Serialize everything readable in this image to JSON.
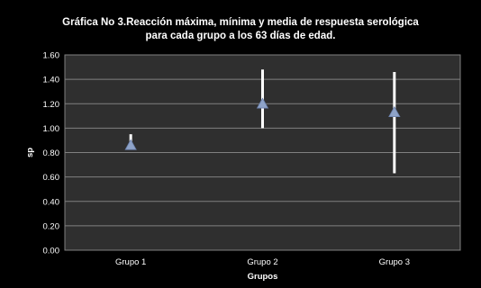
{
  "chart_data": {
    "type": "scatter",
    "title_line1": "Gráfica No 3.Reacción máxima, mínima y media de respuesta serológica",
    "title_line2": "para cada grupo a los 63 días de edad.",
    "xlabel": "Grupos",
    "ylabel": "sp",
    "categories": [
      "Grupo 1",
      "Grupo 2",
      "Grupo 3"
    ],
    "series": [
      {
        "values": [
          0.86,
          1.2,
          1.13
        ],
        "max": [
          0.95,
          1.48,
          1.46
        ],
        "min": [
          0.86,
          1.0,
          0.63
        ]
      }
    ],
    "ylim": [
      0,
      1.6
    ],
    "yticks": [
      "0.00",
      "0.20",
      "0.40",
      "0.60",
      "0.80",
      "1.00",
      "1.20",
      "1.40",
      "1.60"
    ],
    "grid": true,
    "colors": {
      "background": "#000000",
      "plot_area": "#2f2f2f",
      "grid": "#808080",
      "error_bar": "#ffffff",
      "marker": "#8ea3c8"
    }
  }
}
